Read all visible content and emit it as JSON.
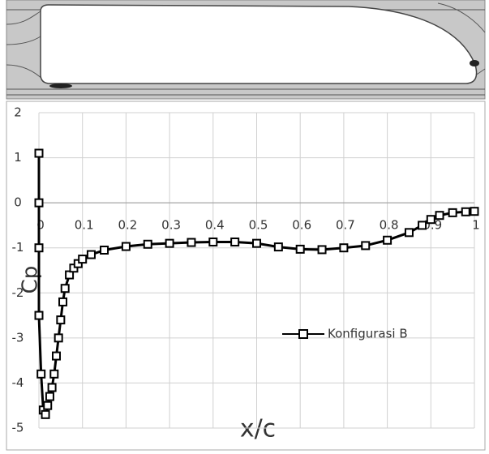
{
  "chart_data": {
    "type": "line",
    "x_label": "x/c",
    "y_label": "Cp",
    "x": [
      0,
      0,
      0,
      0,
      0.005,
      0.01,
      0.015,
      0.02,
      0.025,
      0.03,
      0.035,
      0.04,
      0.045,
      0.05,
      0.055,
      0.06,
      0.07,
      0.08,
      0.09,
      0.1,
      0.12,
      0.15,
      0.2,
      0.25,
      0.3,
      0.35,
      0.4,
      0.45,
      0.5,
      0.55,
      0.6,
      0.65,
      0.7,
      0.75,
      0.8,
      0.85,
      0.88,
      0.9,
      0.92,
      0.95,
      0.98,
      1
    ],
    "series": [
      {
        "name": "Konfigurasi B",
        "color": "#000000",
        "values": [
          1.1,
          0,
          -1,
          -2.5,
          -3.8,
          -4.6,
          -4.7,
          -4.5,
          -4.3,
          -4.1,
          -3.8,
          -3.4,
          -3.0,
          -2.6,
          -2.2,
          -1.9,
          -1.6,
          -1.45,
          -1.35,
          -1.25,
          -1.15,
          -1.05,
          -0.97,
          -0.92,
          -0.9,
          -0.88,
          -0.87,
          -0.87,
          -0.9,
          -0.98,
          -1.03,
          -1.04,
          -1.0,
          -0.95,
          -0.83,
          -0.66,
          -0.5,
          -0.37,
          -0.28,
          -0.22,
          -0.2,
          -0.19
        ]
      }
    ],
    "xlim": [
      0,
      1
    ],
    "xticks": [
      0,
      0.1,
      0.2,
      0.3,
      0.4,
      0.5,
      0.6,
      0.7,
      0.8,
      0.9,
      1
    ],
    "ylim": [
      -5,
      2
    ],
    "yticks": [
      -5,
      -4,
      -3,
      -2,
      -1,
      0,
      1,
      2
    ],
    "grid": true,
    "legend": "right"
  }
}
